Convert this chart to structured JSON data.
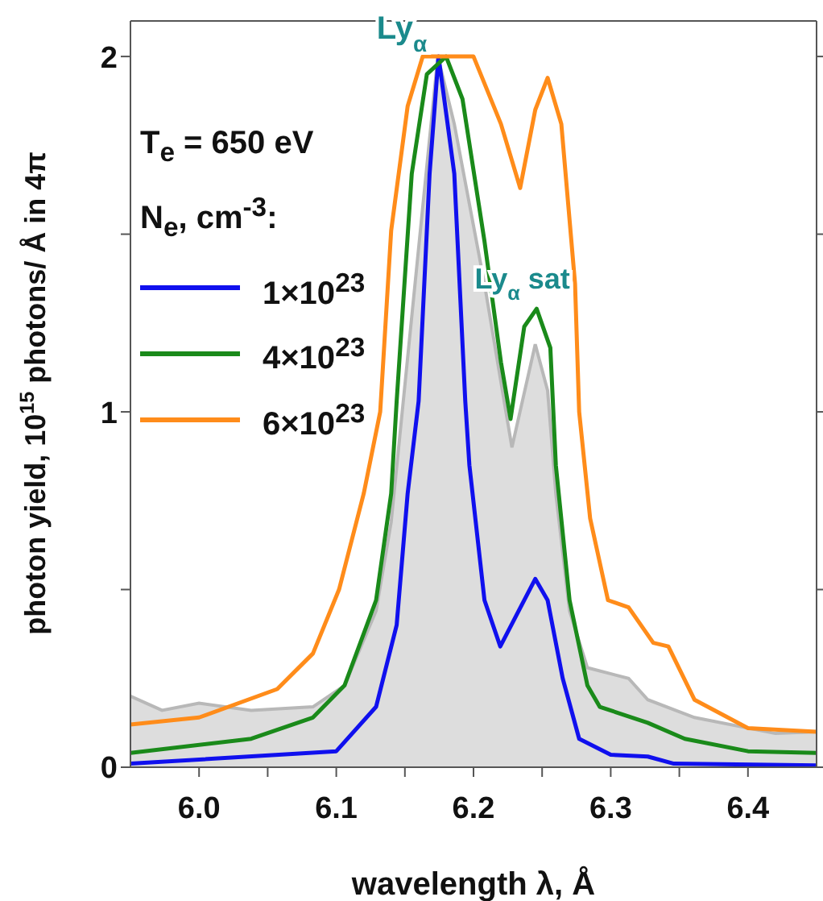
{
  "chart_data": {
    "type": "line",
    "xlabel": "wavelength  λ, Å",
    "ylabel": "photon yield, 10$^{15}$ photons/ Å in 4π",
    "legend_title": "T$_{e}$ = 650 eV\nN$_{e}$, cm$^{-3}$:",
    "legend": "top left",
    "xlim": [
      5.95,
      6.45
    ],
    "ylim": [
      0,
      2.1
    ],
    "xticks": [
      {
        "value": 6,
        "label": "6.0"
      },
      {
        "value": 6.05,
        "label": null
      },
      6.1,
      {
        "value": 6.15,
        "label": null
      },
      6.2,
      {
        "value": 6.25,
        "label": null
      },
      6.3,
      {
        "value": 6.35,
        "label": null
      },
      6.4
    ],
    "yticks": [
      0,
      {
        "value": 0.5,
        "label": null
      },
      1,
      {
        "value": 1.5,
        "label": null
      },
      2
    ],
    "annotations": [
      {
        "text": "Ly$_{α}$",
        "x": 6.175,
        "y": 2.0
      },
      {
        "text": "Ly$_{α}$ sat",
        "x": 6.245,
        "y": 1.29
      }
    ],
    "series": [
      {
        "type": "area",
        "color": "#dddddd",
        "x": [
          5.95,
          5.973,
          6.0,
          6.038,
          6.083,
          6.106,
          6.129,
          6.14,
          6.174,
          6.186,
          6.208,
          6.228,
          6.245,
          6.254,
          6.26,
          6.27,
          6.283,
          6.313,
          6.327,
          6.361,
          6.42,
          6.45
        ],
        "values": [
          0.2,
          0.16,
          0.18,
          0.16,
          0.17,
          0.23,
          0.44,
          0.69,
          2.0,
          1.81,
          1.36,
          0.9,
          1.19,
          1.06,
          0.77,
          0.44,
          0.28,
          0.25,
          0.19,
          0.14,
          0.095,
          0.1
        ]
      },
      {
        "name": "1×10$^{23}$",
        "color": "#1010ee",
        "x": [
          5.95,
          6.1,
          6.129,
          6.144,
          6.152,
          6.16,
          6.168,
          6.1745,
          6.186,
          6.194,
          6.197,
          6.208,
          6.2195,
          6.245,
          6.254,
          6.265,
          6.277,
          6.3,
          6.327,
          6.346,
          6.45
        ],
        "values": [
          0.01,
          0.045,
          0.17,
          0.4,
          0.77,
          1.03,
          1.67,
          2.0,
          1.67,
          1.03,
          0.85,
          0.47,
          0.34,
          0.53,
          0.47,
          0.25,
          0.08,
          0.035,
          0.03,
          0.01,
          0.005
        ]
      },
      {
        "name": "4×10$^{23}$",
        "color": "#1a8a1a",
        "x": [
          5.95,
          6.038,
          6.083,
          6.106,
          6.129,
          6.14,
          6.144,
          6.155,
          6.166,
          6.18,
          6.192,
          6.208,
          6.22,
          6.227,
          6.237,
          6.246,
          6.256,
          6.26,
          6.27,
          6.283,
          6.292,
          6.327,
          6.354,
          6.4,
          6.45
        ],
        "values": [
          0.04,
          0.08,
          0.14,
          0.23,
          0.47,
          0.77,
          1.03,
          1.67,
          1.95,
          2.0,
          1.88,
          1.48,
          1.14,
          0.98,
          1.24,
          1.29,
          1.18,
          0.85,
          0.47,
          0.23,
          0.17,
          0.125,
          0.08,
          0.045,
          0.04
        ]
      },
      {
        "name": "6×10$^{23}$",
        "color": "#ff8c1a",
        "x": [
          5.95,
          6.0,
          6.057,
          6.083,
          6.102,
          6.12,
          6.132,
          6.14,
          6.152,
          6.163,
          6.2,
          6.22,
          6.234,
          6.245,
          6.254,
          6.264,
          6.274,
          6.277,
          6.285,
          6.298,
          6.313,
          6.331,
          6.342,
          6.361,
          6.4,
          6.45
        ],
        "values": [
          0.12,
          0.14,
          0.22,
          0.32,
          0.5,
          0.77,
          1.0,
          1.51,
          1.86,
          2.0,
          2.0,
          1.81,
          1.63,
          1.85,
          1.94,
          1.81,
          1.36,
          1.0,
          0.7,
          0.47,
          0.45,
          0.35,
          0.34,
          0.19,
          0.11,
          0.1
        ]
      }
    ]
  }
}
